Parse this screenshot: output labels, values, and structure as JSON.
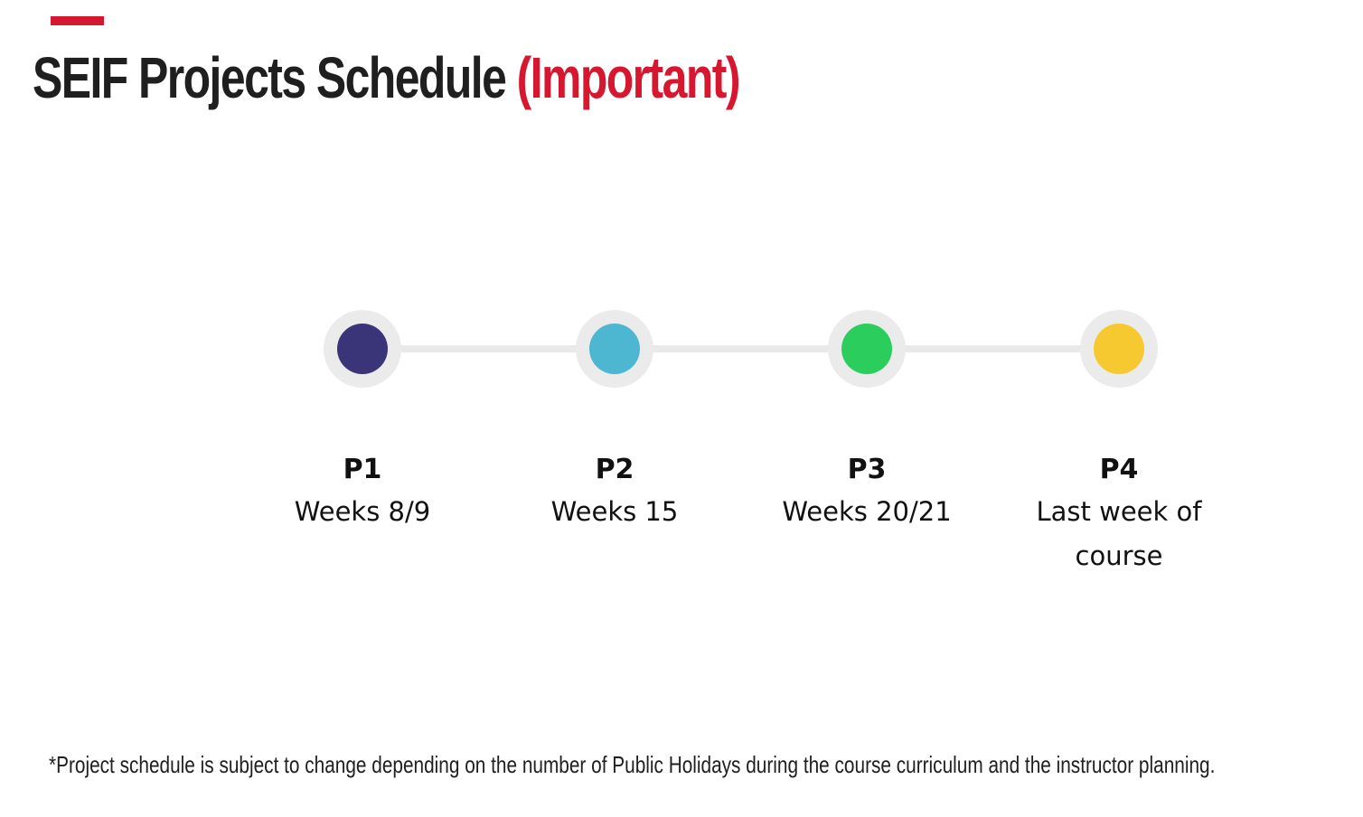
{
  "title": {
    "main": "SEIF Projects Schedule ",
    "highlight": "(Important)"
  },
  "milestones": [
    {
      "code": "P1",
      "when": "Weeks 8/9",
      "color": "#3a3578"
    },
    {
      "code": "P2",
      "when": "Weeks 15",
      "color": "#4db6d0"
    },
    {
      "code": "P3",
      "when": "Weeks 20/21",
      "color": "#2bcd5d"
    },
    {
      "code": "P4",
      "when": "Last week of course",
      "color": "#f7c930"
    }
  ],
  "footnote": "*Project schedule is subject to change depending on the number of Public Holidays during the course curriculum and the instructor planning.",
  "colors": {
    "accent": "#d7172f",
    "track": "#e9e9e9"
  }
}
